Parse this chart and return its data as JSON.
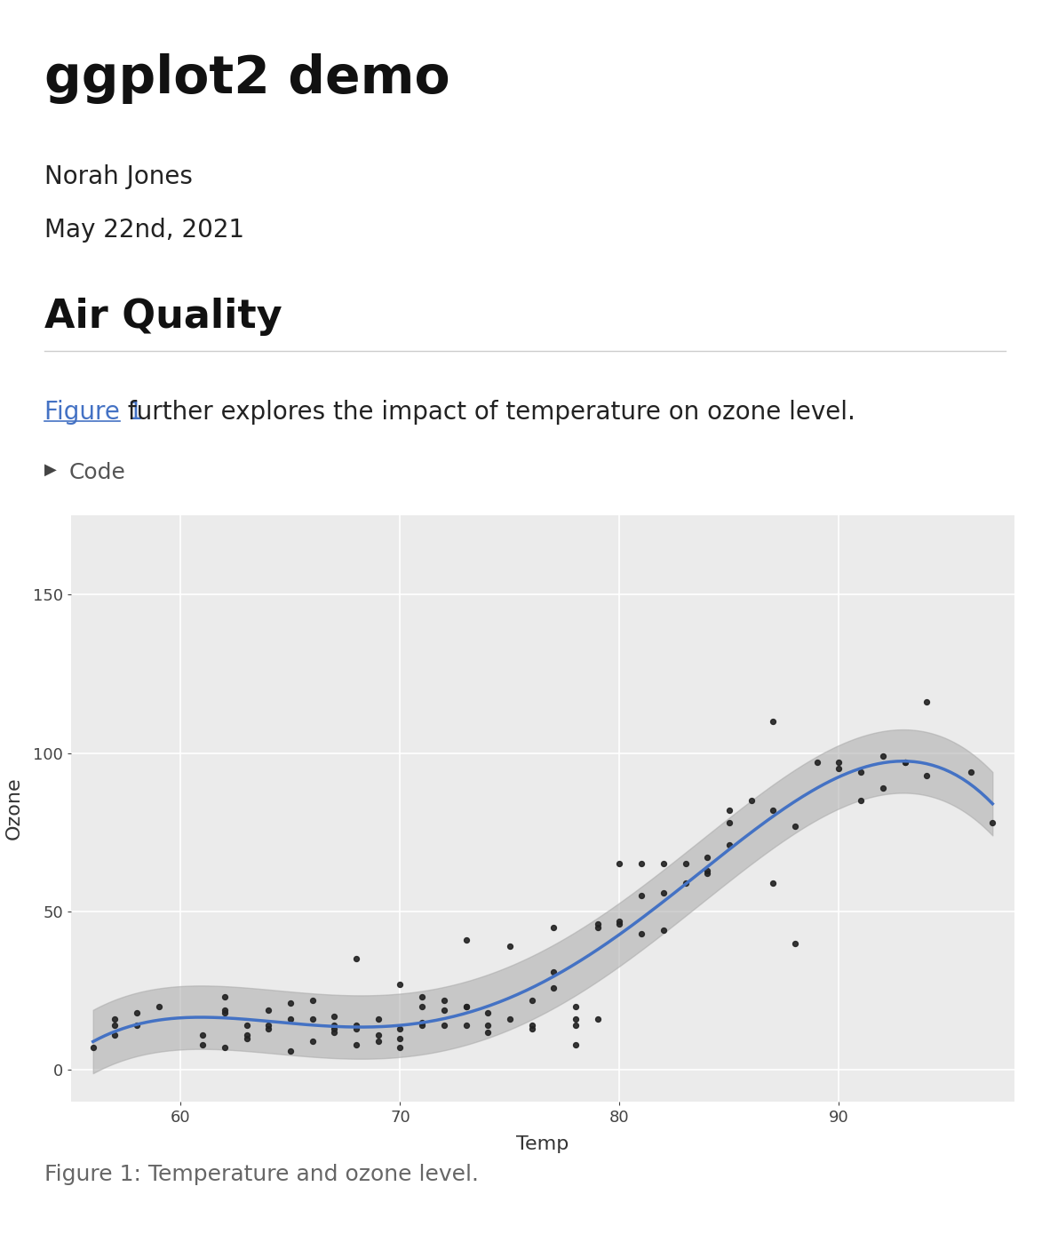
{
  "doc_title": "ggplot2 demo",
  "author": "Norah Jones",
  "date": "May 22nd, 2021",
  "section_title": "Air Quality",
  "body_text_link": "Figure 1",
  "body_text_rest": " further explores the impact of temperature on ozone level.",
  "code_label": "Code",
  "caption": "Figure 1: Temperature and ozone level.",
  "xlabel": "Temp",
  "ylabel": "Ozone",
  "plot_bg": "#EBEBEB",
  "fig_bg": "#FFFFFF",
  "scatter_color": "#222222",
  "smooth_color": "#4472C4",
  "smooth_band_color": "#AAAAAA",
  "link_color": "#4472C4",
  "grid_color": "#FFFFFF",
  "temp": [
    56,
    57,
    57,
    57,
    58,
    58,
    59,
    61,
    61,
    62,
    62,
    62,
    62,
    63,
    63,
    63,
    64,
    64,
    64,
    65,
    65,
    65,
    66,
    66,
    66,
    67,
    67,
    67,
    67,
    68,
    68,
    68,
    68,
    69,
    69,
    69,
    70,
    70,
    70,
    70,
    71,
    71,
    71,
    71,
    72,
    72,
    72,
    73,
    73,
    73,
    73,
    74,
    74,
    74,
    75,
    75,
    76,
    76,
    76,
    77,
    77,
    77,
    78,
    78,
    78,
    78,
    79,
    79,
    79,
    80,
    80,
    80,
    81,
    81,
    81,
    82,
    82,
    82,
    83,
    83,
    84,
    84,
    84,
    85,
    85,
    85,
    86,
    87,
    87,
    87,
    88,
    88,
    89,
    90,
    90,
    91,
    91,
    92,
    92,
    93,
    93,
    94,
    94,
    96,
    97
  ],
  "ozone": [
    7,
    16,
    11,
    14,
    18,
    14,
    20,
    8,
    11,
    23,
    18,
    19,
    7,
    14,
    11,
    10,
    13,
    19,
    14,
    16,
    21,
    6,
    22,
    16,
    9,
    14,
    13,
    17,
    12,
    8,
    35,
    14,
    13,
    9,
    11,
    16,
    7,
    27,
    13,
    10,
    23,
    14,
    15,
    20,
    19,
    14,
    22,
    20,
    41,
    20,
    14,
    12,
    14,
    18,
    39,
    16,
    14,
    13,
    22,
    26,
    45,
    31,
    20,
    14,
    16,
    8,
    45,
    46,
    16,
    65,
    46,
    47,
    55,
    65,
    43,
    65,
    44,
    56,
    65,
    59,
    63,
    67,
    62,
    78,
    82,
    71,
    85,
    110,
    82,
    59,
    77,
    40,
    97,
    95,
    97,
    85,
    94,
    89,
    99,
    97,
    97,
    93,
    116,
    94,
    78
  ],
  "yticks": [
    0,
    50,
    100,
    150
  ],
  "xticks": [
    60,
    70,
    80,
    90
  ],
  "xlim": [
    55,
    98
  ],
  "ylim": [
    -10,
    175
  ]
}
